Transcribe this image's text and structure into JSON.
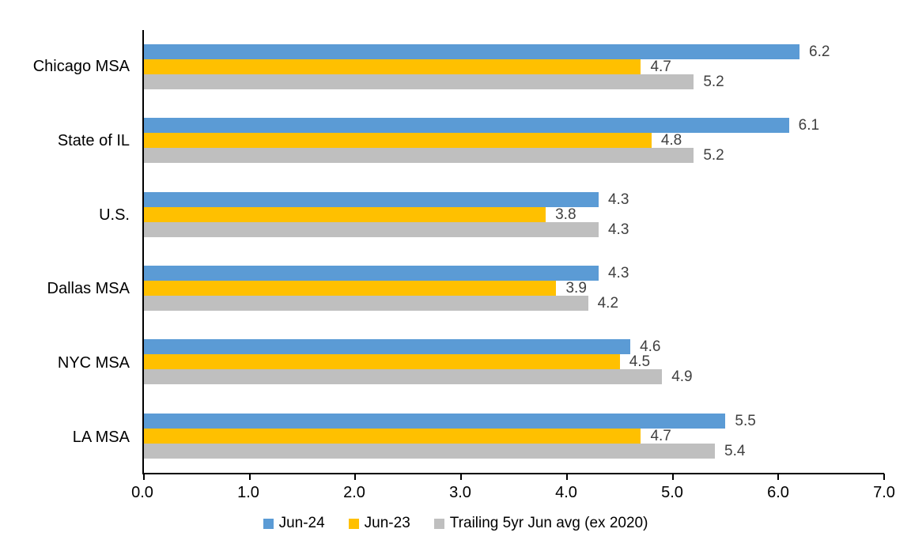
{
  "chart_data": {
    "type": "bar",
    "orientation": "horizontal",
    "title": "",
    "xlabel": "",
    "ylabel": "",
    "xlim": [
      0,
      7
    ],
    "xticks": [
      "0.0",
      "1.0",
      "2.0",
      "3.0",
      "4.0",
      "5.0",
      "6.0",
      "7.0"
    ],
    "grid": false,
    "value_labels": true,
    "legend_position": "bottom",
    "categories": [
      "Chicago MSA",
      "State of IL",
      "U.S.",
      "Dallas MSA",
      "NYC MSA",
      "LA MSA"
    ],
    "series": [
      {
        "name": "Jun-24",
        "color": "#5B9BD5",
        "values": [
          6.2,
          6.1,
          4.3,
          4.3,
          4.6,
          5.5
        ]
      },
      {
        "name": "Jun-23",
        "color": "#FFC000",
        "values": [
          4.7,
          4.8,
          3.8,
          3.9,
          4.5,
          4.7
        ]
      },
      {
        "name": "Trailing 5yr Jun avg (ex 2020)",
        "color": "#BFBFBF",
        "values": [
          5.2,
          5.2,
          4.3,
          4.2,
          4.9,
          5.4
        ]
      }
    ],
    "colors": {
      "axis_line": "#000000",
      "value_label_text": "#404040",
      "tick_label_text": "#000000",
      "category_label_text": "#000000",
      "background": "#ffffff"
    }
  }
}
